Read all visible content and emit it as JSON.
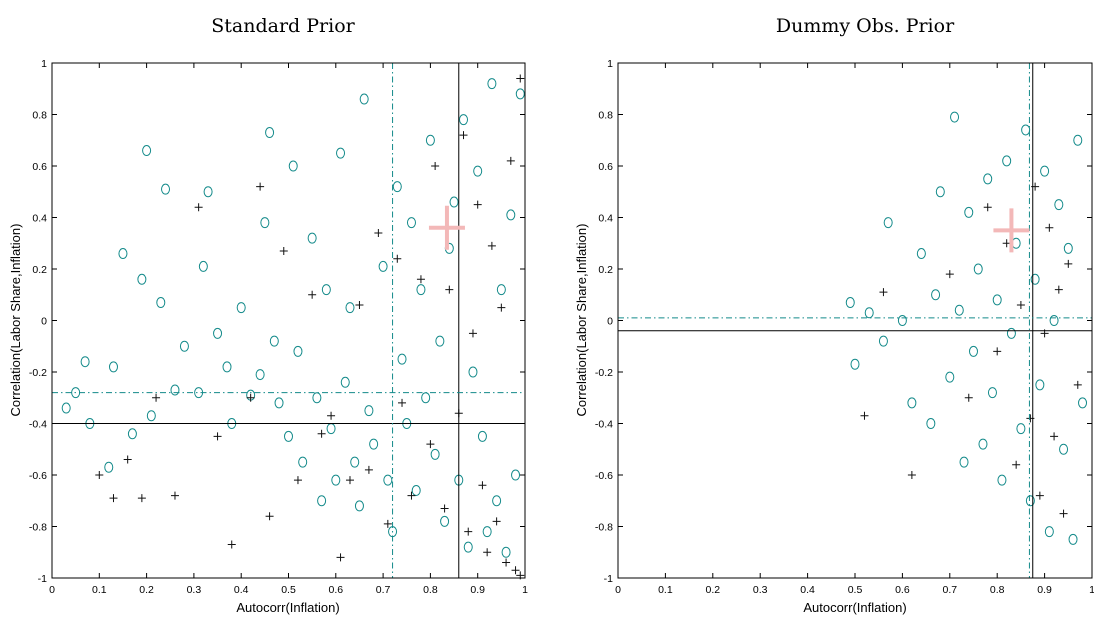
{
  "chart_data": [
    {
      "type": "scatter",
      "title": "Standard Prior",
      "xlabel": "Autocorr(Inflation)",
      "ylabel": "Correlation(Labor Share,Inflation)",
      "xlim": [
        0,
        1
      ],
      "ylim": [
        -1,
        1
      ],
      "xticks": [
        "0",
        "0.1",
        "0.2",
        "0.3",
        "0.4",
        "0.5",
        "0.6",
        "0.7",
        "0.8",
        "0.9",
        "1"
      ],
      "yticks": [
        "-1",
        "-0.8",
        "-0.6",
        "-0.4",
        "-0.2",
        "0",
        "0.2",
        "0.4",
        "0.6",
        "0.8",
        "1"
      ],
      "grid": false,
      "series": [
        {
          "marker": "circle",
          "color": "#138a8a",
          "values": [
            [
              0.03,
              -0.34
            ],
            [
              0.05,
              -0.28
            ],
            [
              0.07,
              -0.16
            ],
            [
              0.08,
              -0.4
            ],
            [
              0.12,
              -0.57
            ],
            [
              0.13,
              -0.18
            ],
            [
              0.15,
              0.26
            ],
            [
              0.17,
              -0.44
            ],
            [
              0.19,
              0.16
            ],
            [
              0.2,
              0.66
            ],
            [
              0.21,
              -0.37
            ],
            [
              0.23,
              0.07
            ],
            [
              0.24,
              0.51
            ],
            [
              0.26,
              -0.27
            ],
            [
              0.28,
              -0.1
            ],
            [
              0.31,
              -0.28
            ],
            [
              0.32,
              0.21
            ],
            [
              0.33,
              0.5
            ],
            [
              0.35,
              -0.05
            ],
            [
              0.37,
              -0.18
            ],
            [
              0.38,
              -0.4
            ],
            [
              0.4,
              0.05
            ],
            [
              0.42,
              -0.29
            ],
            [
              0.44,
              -0.21
            ],
            [
              0.45,
              0.38
            ],
            [
              0.46,
              0.73
            ],
            [
              0.47,
              -0.08
            ],
            [
              0.48,
              -0.32
            ],
            [
              0.5,
              -0.45
            ],
            [
              0.51,
              0.6
            ],
            [
              0.52,
              -0.12
            ],
            [
              0.53,
              -0.55
            ],
            [
              0.55,
              0.32
            ],
            [
              0.56,
              -0.3
            ],
            [
              0.57,
              -0.7
            ],
            [
              0.58,
              0.12
            ],
            [
              0.59,
              -0.42
            ],
            [
              0.6,
              -0.62
            ],
            [
              0.61,
              0.65
            ],
            [
              0.62,
              -0.24
            ],
            [
              0.63,
              0.05
            ],
            [
              0.64,
              -0.55
            ],
            [
              0.65,
              -0.72
            ],
            [
              0.66,
              0.86
            ],
            [
              0.67,
              -0.35
            ],
            [
              0.68,
              -0.48
            ],
            [
              0.7,
              0.21
            ],
            [
              0.71,
              -0.62
            ],
            [
              0.72,
              -0.82
            ],
            [
              0.73,
              0.52
            ],
            [
              0.74,
              -0.15
            ],
            [
              0.75,
              -0.4
            ],
            [
              0.76,
              0.38
            ],
            [
              0.77,
              -0.66
            ],
            [
              0.78,
              0.12
            ],
            [
              0.79,
              -0.3
            ],
            [
              0.8,
              0.7
            ],
            [
              0.81,
              -0.52
            ],
            [
              0.82,
              -0.08
            ],
            [
              0.83,
              -0.78
            ],
            [
              0.84,
              0.28
            ],
            [
              0.85,
              0.46
            ],
            [
              0.86,
              -0.62
            ],
            [
              0.87,
              0.78
            ],
            [
              0.88,
              -0.88
            ],
            [
              0.89,
              -0.2
            ],
            [
              0.9,
              0.58
            ],
            [
              0.91,
              -0.45
            ],
            [
              0.92,
              -0.82
            ],
            [
              0.93,
              0.92
            ],
            [
              0.94,
              -0.7
            ],
            [
              0.95,
              0.12
            ],
            [
              0.96,
              -0.9
            ],
            [
              0.97,
              0.41
            ],
            [
              0.98,
              -0.6
            ],
            [
              0.99,
              0.88
            ]
          ]
        },
        {
          "marker": "plus",
          "color": "#111111",
          "values": [
            [
              0.1,
              -0.6
            ],
            [
              0.13,
              -0.69
            ],
            [
              0.16,
              -0.54
            ],
            [
              0.19,
              -0.69
            ],
            [
              0.22,
              -0.3
            ],
            [
              0.26,
              -0.68
            ],
            [
              0.31,
              0.44
            ],
            [
              0.35,
              -0.45
            ],
            [
              0.38,
              -0.87
            ],
            [
              0.42,
              -0.3
            ],
            [
              0.44,
              0.52
            ],
            [
              0.46,
              -0.76
            ],
            [
              0.49,
              0.27
            ],
            [
              0.52,
              -0.62
            ],
            [
              0.55,
              0.1
            ],
            [
              0.57,
              -0.44
            ],
            [
              0.59,
              -0.37
            ],
            [
              0.61,
              -0.92
            ],
            [
              0.63,
              -0.62
            ],
            [
              0.65,
              0.06
            ],
            [
              0.67,
              -0.58
            ],
            [
              0.69,
              0.34
            ],
            [
              0.71,
              -0.79
            ],
            [
              0.73,
              0.24
            ],
            [
              0.74,
              -0.32
            ],
            [
              0.76,
              -0.68
            ],
            [
              0.78,
              0.16
            ],
            [
              0.8,
              -0.48
            ],
            [
              0.81,
              0.6
            ],
            [
              0.83,
              -0.73
            ],
            [
              0.84,
              0.12
            ],
            [
              0.86,
              -0.36
            ],
            [
              0.87,
              0.72
            ],
            [
              0.88,
              -0.82
            ],
            [
              0.89,
              -0.05
            ],
            [
              0.9,
              0.45
            ],
            [
              0.91,
              -0.64
            ],
            [
              0.92,
              -0.9
            ],
            [
              0.93,
              0.29
            ],
            [
              0.94,
              -0.78
            ],
            [
              0.95,
              0.05
            ],
            [
              0.96,
              -0.94
            ],
            [
              0.97,
              0.62
            ],
            [
              0.98,
              -0.97
            ],
            [
              0.99,
              0.94
            ],
            [
              0.99,
              -0.99
            ]
          ]
        }
      ],
      "reference_lines": {
        "solid_x": 0.86,
        "solid_y": -0.4,
        "dashdot_x": 0.72,
        "dashdot_y": -0.28
      },
      "highlight_point": [
        0.835,
        0.36
      ]
    },
    {
      "type": "scatter",
      "title": "Dummy Obs. Prior",
      "xlabel": "Autocorr(Inflation)",
      "ylabel": "Correlation(Labor Share,Inflation)",
      "xlim": [
        0,
        1
      ],
      "ylim": [
        -1,
        1
      ],
      "xticks": [
        "0",
        "0.1",
        "0.2",
        "0.3",
        "0.4",
        "0.5",
        "0.6",
        "0.7",
        "0.8",
        "0.9",
        "1"
      ],
      "yticks": [
        "-1",
        "-0.8",
        "-0.6",
        "-0.4",
        "-0.2",
        "0",
        "0.2",
        "0.4",
        "0.6",
        "0.8",
        "1"
      ],
      "grid": false,
      "series": [
        {
          "marker": "circle",
          "color": "#138a8a",
          "values": [
            [
              0.49,
              0.07
            ],
            [
              0.5,
              -0.17
            ],
            [
              0.53,
              0.03
            ],
            [
              0.56,
              -0.08
            ],
            [
              0.57,
              0.38
            ],
            [
              0.6,
              0.0
            ],
            [
              0.62,
              -0.32
            ],
            [
              0.64,
              0.26
            ],
            [
              0.66,
              -0.4
            ],
            [
              0.67,
              0.1
            ],
            [
              0.68,
              0.5
            ],
            [
              0.7,
              -0.22
            ],
            [
              0.71,
              0.79
            ],
            [
              0.72,
              0.04
            ],
            [
              0.73,
              -0.55
            ],
            [
              0.74,
              0.42
            ],
            [
              0.75,
              -0.12
            ],
            [
              0.76,
              0.2
            ],
            [
              0.77,
              -0.48
            ],
            [
              0.78,
              0.55
            ],
            [
              0.79,
              -0.28
            ],
            [
              0.8,
              0.08
            ],
            [
              0.81,
              -0.62
            ],
            [
              0.82,
              0.62
            ],
            [
              0.83,
              -0.05
            ],
            [
              0.84,
              0.3
            ],
            [
              0.85,
              -0.42
            ],
            [
              0.86,
              0.74
            ],
            [
              0.87,
              -0.7
            ],
            [
              0.88,
              0.16
            ],
            [
              0.89,
              -0.25
            ],
            [
              0.9,
              0.58
            ],
            [
              0.91,
              -0.82
            ],
            [
              0.92,
              0.0
            ],
            [
              0.93,
              0.45
            ],
            [
              0.94,
              -0.5
            ],
            [
              0.95,
              0.28
            ],
            [
              0.96,
              -0.85
            ],
            [
              0.97,
              0.7
            ],
            [
              0.98,
              -0.32
            ]
          ]
        },
        {
          "marker": "plus",
          "color": "#111111",
          "values": [
            [
              0.52,
              -0.37
            ],
            [
              0.56,
              0.11
            ],
            [
              0.62,
              -0.6
            ],
            [
              0.7,
              0.18
            ],
            [
              0.74,
              -0.3
            ],
            [
              0.78,
              0.44
            ],
            [
              0.8,
              -0.12
            ],
            [
              0.82,
              0.3
            ],
            [
              0.84,
              -0.56
            ],
            [
              0.85,
              0.06
            ],
            [
              0.87,
              -0.38
            ],
            [
              0.88,
              0.52
            ],
            [
              0.89,
              -0.68
            ],
            [
              0.9,
              -0.05
            ],
            [
              0.91,
              0.36
            ],
            [
              0.92,
              -0.45
            ],
            [
              0.93,
              0.12
            ],
            [
              0.94,
              -0.75
            ],
            [
              0.95,
              0.22
            ],
            [
              0.97,
              -0.25
            ]
          ]
        }
      ],
      "reference_lines": {
        "solid_x": 0.875,
        "solid_y": -0.04,
        "dashdot_x": 0.868,
        "dashdot_y": 0.01
      },
      "highlight_point": [
        0.83,
        0.35
      ]
    }
  ]
}
